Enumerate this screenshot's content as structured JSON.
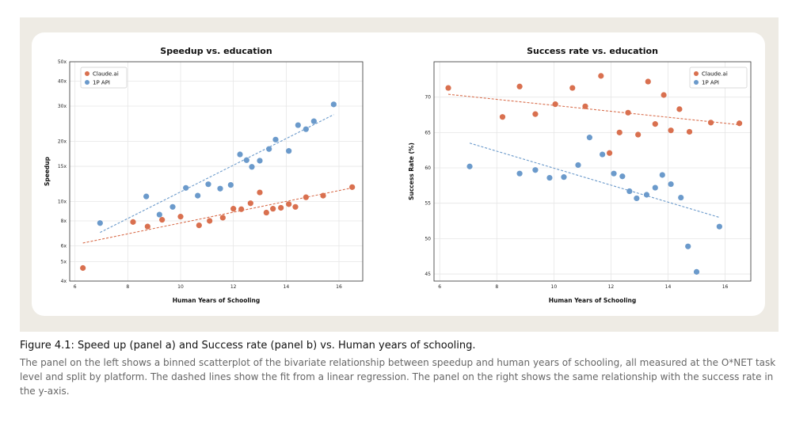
{
  "colors": {
    "claude_ai": "#d9704f",
    "api": "#6b9acb",
    "frame": "#eeebe4"
  },
  "chart_data": [
    {
      "type": "scatter",
      "title": "Speedup vs. education",
      "xlabel": "Human Years of Schooling",
      "ylabel": "Speedup",
      "xlim": [
        5.8,
        16.9
      ],
      "ylim": [
        4,
        50
      ],
      "yscale": "log",
      "xticks": [
        6,
        8,
        10,
        12,
        14,
        16
      ],
      "xtick_labels": [
        "6",
        "8",
        "10",
        "12",
        "14",
        "16"
      ],
      "yticks": [
        4,
        5,
        6,
        8,
        10,
        15,
        20,
        30,
        40,
        50
      ],
      "ytick_labels": [
        "4x",
        "5x",
        "6x",
        "8x",
        "10x",
        "15x",
        "20x",
        "30x",
        "40x",
        "50x"
      ],
      "legend_position": "top-left",
      "series": [
        {
          "name": "Claude.ai",
          "color_key": "claude_ai",
          "points": [
            [
              6.3,
              4.65
            ],
            [
              8.2,
              7.9
            ],
            [
              8.75,
              7.5
            ],
            [
              9.3,
              8.1
            ],
            [
              10.0,
              8.4
            ],
            [
              10.7,
              7.6
            ],
            [
              11.1,
              8.0
            ],
            [
              11.6,
              8.3
            ],
            [
              12.0,
              9.2
            ],
            [
              12.3,
              9.15
            ],
            [
              12.65,
              9.8
            ],
            [
              13.0,
              11.1
            ],
            [
              13.25,
              8.8
            ],
            [
              13.5,
              9.2
            ],
            [
              13.8,
              9.3
            ],
            [
              14.1,
              9.7
            ],
            [
              14.35,
              9.4
            ],
            [
              14.75,
              10.5
            ],
            [
              15.4,
              10.7
            ],
            [
              16.5,
              11.8
            ]
          ],
          "fit": [
            [
              6.3,
              6.2
            ],
            [
              16.5,
              11.7
            ]
          ]
        },
        {
          "name": "1P API",
          "color_key": "api",
          "points": [
            [
              6.95,
              7.8
            ],
            [
              8.7,
              10.6
            ],
            [
              9.2,
              8.6
            ],
            [
              9.7,
              9.4
            ],
            [
              10.2,
              11.7
            ],
            [
              10.65,
              10.7
            ],
            [
              11.05,
              12.2
            ],
            [
              11.5,
              11.6
            ],
            [
              11.9,
              12.1
            ],
            [
              12.25,
              17.2
            ],
            [
              12.5,
              16.1
            ],
            [
              12.7,
              14.9
            ],
            [
              13.0,
              16.0
            ],
            [
              13.35,
              18.3
            ],
            [
              13.6,
              20.4
            ],
            [
              14.1,
              17.9
            ],
            [
              14.45,
              24.1
            ],
            [
              14.75,
              23.0
            ],
            [
              15.05,
              25.2
            ],
            [
              15.8,
              30.6
            ]
          ],
          "fit": [
            [
              6.95,
              7.0
            ],
            [
              15.8,
              27.2
            ]
          ]
        }
      ]
    },
    {
      "type": "scatter",
      "title": "Success rate vs. education",
      "xlabel": "Human Years of Schooling",
      "ylabel": "Success Rate (%)",
      "xlim": [
        5.8,
        16.9
      ],
      "ylim": [
        44,
        75
      ],
      "xticks": [
        6,
        8,
        10,
        12,
        14,
        16
      ],
      "xtick_labels": [
        "6",
        "8",
        "10",
        "12",
        "14",
        "16"
      ],
      "yticks": [
        45,
        50,
        55,
        60,
        65,
        70
      ],
      "ytick_labels": [
        "45",
        "50",
        "55",
        "60",
        "65",
        "70"
      ],
      "legend_position": "top-right",
      "series": [
        {
          "name": "Claude.ai",
          "color_key": "claude_ai",
          "points": [
            [
              6.3,
              71.3
            ],
            [
              8.2,
              67.2
            ],
            [
              8.8,
              71.5
            ],
            [
              9.35,
              67.6
            ],
            [
              10.05,
              69.0
            ],
            [
              10.65,
              71.3
            ],
            [
              11.1,
              68.7
            ],
            [
              11.65,
              73.0
            ],
            [
              11.95,
              62.1
            ],
            [
              12.3,
              65.0
            ],
            [
              12.6,
              67.8
            ],
            [
              12.95,
              64.7
            ],
            [
              13.3,
              72.2
            ],
            [
              13.55,
              66.2
            ],
            [
              13.85,
              70.3
            ],
            [
              14.1,
              65.3
            ],
            [
              14.4,
              68.3
            ],
            [
              14.75,
              65.1
            ],
            [
              15.5,
              66.4
            ],
            [
              16.5,
              66.3
            ]
          ],
          "fit": [
            [
              6.3,
              70.4
            ],
            [
              16.5,
              66.1
            ]
          ]
        },
        {
          "name": "1P API",
          "color_key": "api",
          "points": [
            [
              7.05,
              60.2
            ],
            [
              8.8,
              59.2
            ],
            [
              9.35,
              59.7
            ],
            [
              9.85,
              58.6
            ],
            [
              10.35,
              58.7
            ],
            [
              10.85,
              60.4
            ],
            [
              11.25,
              64.3
            ],
            [
              11.7,
              61.9
            ],
            [
              12.1,
              59.2
            ],
            [
              12.4,
              58.8
            ],
            [
              12.65,
              56.7
            ],
            [
              12.9,
              55.7
            ],
            [
              13.25,
              56.2
            ],
            [
              13.55,
              57.2
            ],
            [
              13.8,
              59.0
            ],
            [
              14.1,
              57.7
            ],
            [
              14.45,
              55.8
            ],
            [
              14.7,
              48.9
            ],
            [
              15.0,
              45.3
            ],
            [
              15.8,
              51.7
            ]
          ],
          "fit": [
            [
              7.05,
              63.5
            ],
            [
              15.8,
              53.0
            ]
          ]
        }
      ]
    }
  ],
  "caption": {
    "title": "Figure 4.1: Speed up (panel a) and Success rate (panel b) vs. Human years of schooling.",
    "body": "The panel on the left shows a binned scatterplot of the bivariate relationship between speedup and human years of schooling, all measured at the O*NET task level and split by platform. The dashed lines show the fit from a linear regression. The panel on the right shows the same relationship with the success rate in the y-axis."
  }
}
